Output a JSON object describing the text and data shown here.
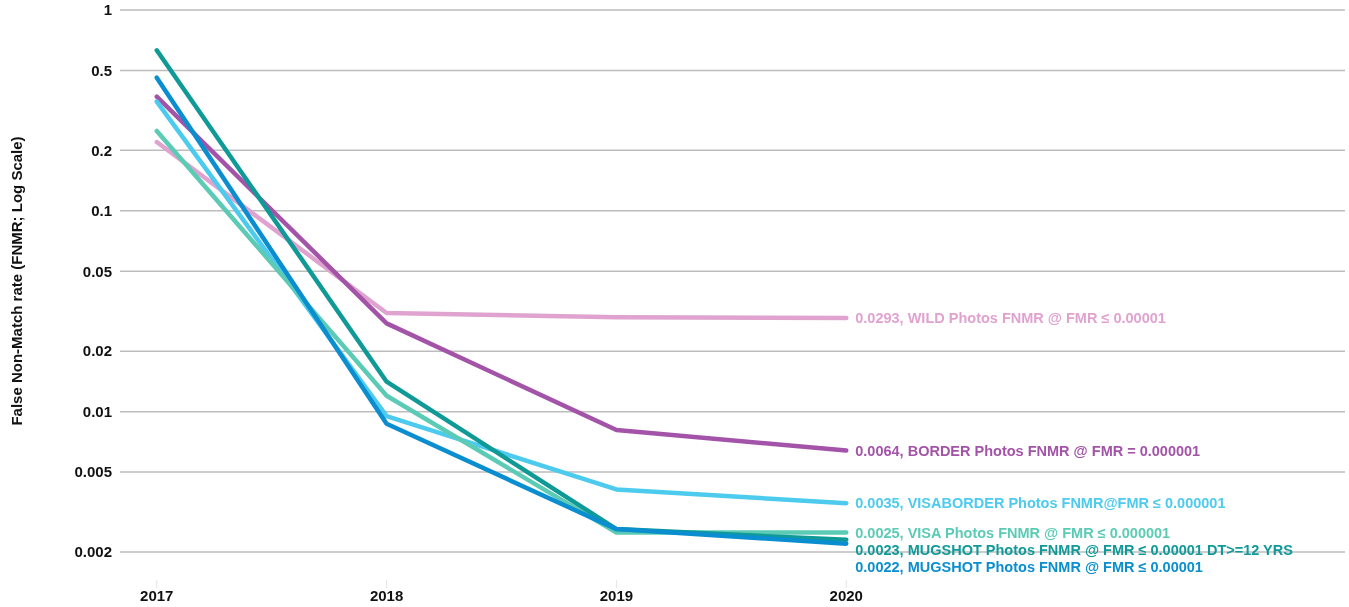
{
  "chart_data": {
    "type": "line",
    "ylabel": "False Non-Match rate (FNMR; Log Scale)",
    "x": [
      2017,
      2018,
      2019,
      2020
    ],
    "xlim": [
      2016.84,
      2022.17
    ],
    "xticks": [
      2017,
      2018,
      2019,
      2020
    ],
    "ylim": [
      0.002,
      1
    ],
    "yticks": [
      0.002,
      0.005,
      0.01,
      0.02,
      0.05,
      0.1,
      0.2,
      0.5,
      1
    ],
    "log": "y",
    "grid": "y",
    "marker": "none",
    "line_style": "solid",
    "series": [
      {
        "name": "0.0293, WILD Photos FNMR @ FMR ≤ 0.00001",
        "color": "#e0a3d0",
        "values": [
          0.22,
          0.031,
          0.0295,
          0.0293
        ]
      },
      {
        "name": "0.0064, BORDER Photos FNMR @ FMR = 0.000001",
        "color": "#a354a8",
        "values": [
          0.37,
          0.0275,
          0.0081,
          0.0064
        ]
      },
      {
        "name": "0.0035, VISABORDER Photos FNMR@FMR ≤ 0.000001",
        "color": "#4dcbee",
        "values": [
          0.35,
          0.0095,
          0.0041,
          0.0035
        ]
      },
      {
        "name": "0.0025, VISA Photos FNMR @ FMR ≤ 0.000001",
        "color": "#5ccbb6",
        "values": [
          0.25,
          0.012,
          0.0025,
          0.0025
        ]
      },
      {
        "name": "0.0023, MUGSHOT Photos FNMR @ FMR ≤ 0.00001 DT>=12 YRS",
        "color": "#0f9a98",
        "values": [
          0.63,
          0.0141,
          0.0026,
          0.0023
        ]
      },
      {
        "name": "0.0022, MUGSHOT Photos FNMR @ FMR ≤ 0.00001",
        "color": "#0a8ecf",
        "values": [
          0.46,
          0.0087,
          0.0026,
          0.0022
        ]
      }
    ]
  }
}
